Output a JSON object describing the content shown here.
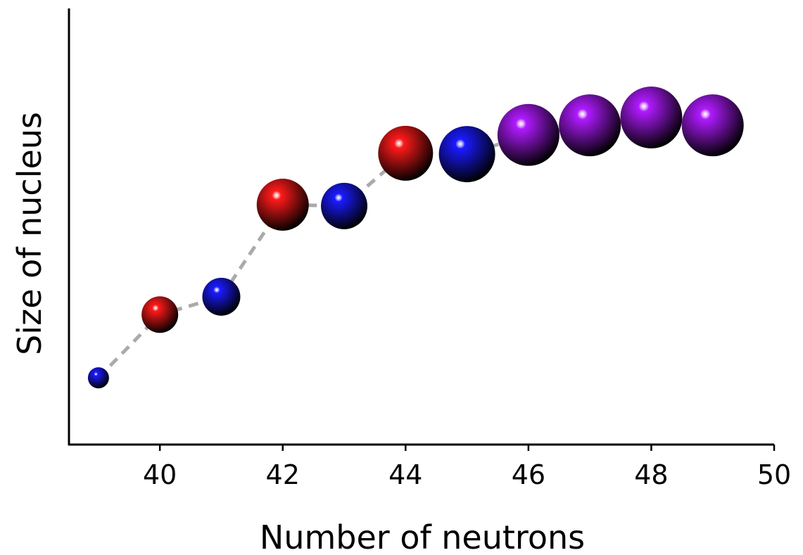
{
  "chart_data": {
    "type": "bubble",
    "x_label": "Number of neutrons",
    "y_label": "Size of nucleus",
    "x": [
      39,
      40,
      41,
      42,
      43,
      44,
      45,
      46,
      47,
      48,
      49
    ],
    "values": [
      15.3,
      29.8,
      33.9,
      55.0,
      54.7,
      66.8,
      66.6,
      71.0,
      73.2,
      75.0,
      73.2
    ],
    "sizes": [
      15,
      26,
      27,
      37,
      33,
      39,
      40,
      44,
      44,
      44,
      44
    ],
    "colors": [
      "#1a1aff",
      "#ff1a1a",
      "#1a1aff",
      "#ff1a1a",
      "#1a1aff",
      "#ff1a1a",
      "#1a1aff",
      "#b01aff",
      "#b01aff",
      "#b01aff",
      "#b01aff"
    ],
    "line_color": "#aaaaaa",
    "xlim": [
      38.52,
      50
    ],
    "xticks": [
      40,
      42,
      44,
      46,
      48,
      50
    ],
    "ylim": [
      0,
      100
    ]
  }
}
